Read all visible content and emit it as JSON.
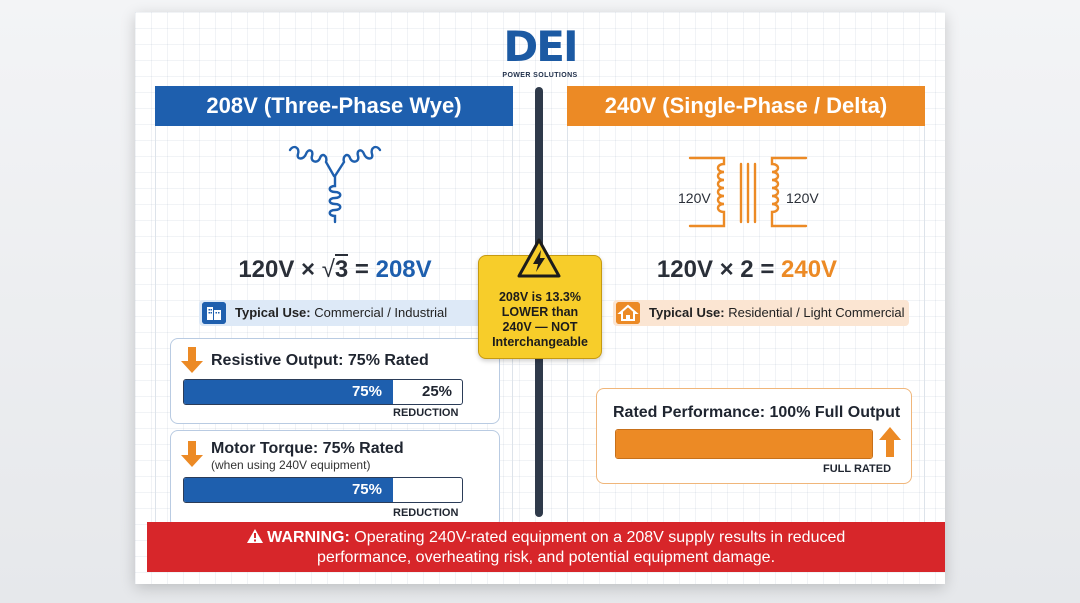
{
  "logo": {
    "mark": "DEI",
    "subtitle": "POWER SOLUTIONS"
  },
  "left": {
    "header": "208V (Three-Phase Wye)",
    "equation": {
      "prefix": "120V × ",
      "root": "3",
      "middle": " = ",
      "result": "208V"
    },
    "typical_use": {
      "label": "Typical Use:",
      "value": "Commercial / Industrial",
      "icon": "building-icon"
    },
    "resistive": {
      "title": "Resistive Output: 75% Rated",
      "fill_percent": 75,
      "fill_label": "75%",
      "rest_label": "25%",
      "caption": "REDUCTION"
    },
    "torque": {
      "title": "Motor Torque: 75% Rated",
      "subtitle": "(when using 240V equipment)",
      "fill_percent": 75,
      "fill_label": "75%",
      "caption": "REDUCTION"
    }
  },
  "right": {
    "header": "240V (Single-Phase / Delta)",
    "coil_left_label": "120V",
    "coil_right_label": "120V",
    "equation": {
      "prefix": "120V × 2 = ",
      "result": "240V"
    },
    "typical_use": {
      "label": "Typical Use:",
      "value": "Residential / Light Commercial",
      "icon": "house-icon"
    },
    "rated": {
      "title": "Rated Performance: 100% Full Output",
      "fill_percent": 100,
      "caption": "FULL RATED"
    }
  },
  "center_warning": {
    "icon": "high-voltage-icon",
    "lines": [
      "208V is 13.3%",
      "LOWER than",
      "240V — NOT",
      "Interchangeable"
    ]
  },
  "footer": {
    "icon": "warning-icon",
    "label": "WARNING:",
    "line1": "Operating 240V-rated equipment on a 208V supply results in reduced",
    "line2": "performance, overheating risk, and potential equipment damage."
  },
  "colors": {
    "blue": "#1e5fae",
    "orange": "#ec8a25",
    "red": "#d7262a",
    "yellow": "#f7cd2a"
  }
}
